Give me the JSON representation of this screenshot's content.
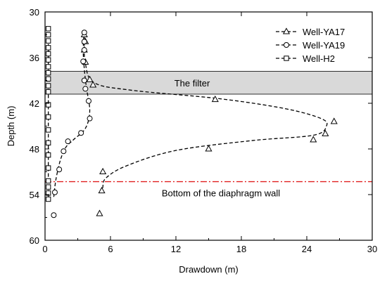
{
  "chart_data": {
    "type": "line",
    "xlabel": "Drawdown (m)",
    "ylabel": "Depth  (m)",
    "xlim": [
      0,
      30
    ],
    "ylim": [
      30,
      60
    ],
    "y_inverted": true,
    "x_ticks": [
      0,
      6,
      12,
      18,
      24,
      30
    ],
    "y_ticks": [
      30,
      36,
      42,
      48,
      54,
      60
    ],
    "grid": false,
    "legend_position": "top-right",
    "series": [
      {
        "name": "Well-YA17",
        "marker": "triangle",
        "color": "#000000",
        "points": [
          {
            "x": 3.6,
            "y": 33.0
          },
          {
            "x": 3.7,
            "y": 33.9
          },
          {
            "x": 3.6,
            "y": 35.0
          },
          {
            "x": 3.7,
            "y": 36.6
          },
          {
            "x": 4.1,
            "y": 38.9
          },
          {
            "x": 4.4,
            "y": 39.6
          },
          {
            "x": 15.6,
            "y": 41.5
          },
          {
            "x": 26.5,
            "y": 44.4
          },
          {
            "x": 25.7,
            "y": 46.0
          },
          {
            "x": 24.6,
            "y": 46.8
          },
          {
            "x": 15.0,
            "y": 48.0
          },
          {
            "x": 5.3,
            "y": 51.0
          },
          {
            "x": 5.2,
            "y": 53.5
          },
          {
            "x": 5.0,
            "y": 56.5
          }
        ]
      },
      {
        "name": "Well-YA19",
        "marker": "circle",
        "color": "#000000",
        "points": [
          {
            "x": 3.6,
            "y": 32.7
          },
          {
            "x": 3.6,
            "y": 33.9
          },
          {
            "x": 3.6,
            "y": 35.0
          },
          {
            "x": 3.5,
            "y": 36.5
          },
          {
            "x": 3.6,
            "y": 39.0
          },
          {
            "x": 3.7,
            "y": 40.1
          },
          {
            "x": 4.0,
            "y": 41.7
          },
          {
            "x": 4.1,
            "y": 44.0
          },
          {
            "x": 3.3,
            "y": 45.9
          },
          {
            "x": 2.1,
            "y": 47.0
          },
          {
            "x": 1.7,
            "y": 48.3
          },
          {
            "x": 1.3,
            "y": 50.7
          },
          {
            "x": 0.9,
            "y": 53.7
          },
          {
            "x": 0.8,
            "y": 56.7
          }
        ]
      },
      {
        "name": "Well-H2",
        "marker": "square",
        "color": "#000000",
        "points": [
          {
            "x": 0.3,
            "y": 32.2
          },
          {
            "x": 0.3,
            "y": 33.0
          },
          {
            "x": 0.3,
            "y": 33.8
          },
          {
            "x": 0.3,
            "y": 34.7
          },
          {
            "x": 0.3,
            "y": 35.5
          },
          {
            "x": 0.3,
            "y": 36.3
          },
          {
            "x": 0.3,
            "y": 37.2
          },
          {
            "x": 0.3,
            "y": 38.0
          },
          {
            "x": 0.3,
            "y": 38.8
          },
          {
            "x": 0.3,
            "y": 39.7
          },
          {
            "x": 0.3,
            "y": 40.5
          },
          {
            "x": 0.3,
            "y": 42.2
          },
          {
            "x": 0.3,
            "y": 43.8
          },
          {
            "x": 0.3,
            "y": 45.5
          },
          {
            "x": 0.3,
            "y": 47.2
          },
          {
            "x": 0.3,
            "y": 48.8
          },
          {
            "x": 0.3,
            "y": 50.5
          },
          {
            "x": 0.3,
            "y": 52.2
          },
          {
            "x": 0.3,
            "y": 53.0
          },
          {
            "x": 0.3,
            "y": 53.8
          },
          {
            "x": 0.3,
            "y": 54.6
          }
        ]
      }
    ],
    "curves": [
      {
        "series": "Well-YA17",
        "points": [
          {
            "x": 3.6,
            "y": 32.5
          },
          {
            "x": 3.6,
            "y": 34.5
          },
          {
            "x": 3.7,
            "y": 36.8
          },
          {
            "x": 4.5,
            "y": 39.3
          },
          {
            "x": 8.0,
            "y": 40.3
          },
          {
            "x": 16.0,
            "y": 41.4
          },
          {
            "x": 22.0,
            "y": 42.7
          },
          {
            "x": 25.3,
            "y": 44.0
          },
          {
            "x": 25.8,
            "y": 45.0
          },
          {
            "x": 24.6,
            "y": 46.2
          },
          {
            "x": 19.0,
            "y": 46.9
          },
          {
            "x": 12.0,
            "y": 48.2
          },
          {
            "x": 7.5,
            "y": 50.2
          },
          {
            "x": 5.6,
            "y": 51.8
          },
          {
            "x": 5.3,
            "y": 53.0
          },
          {
            "x": 5.3,
            "y": 53.7
          }
        ]
      },
      {
        "series": "Well-YA19",
        "points": [
          {
            "x": 3.6,
            "y": 32.5
          },
          {
            "x": 3.5,
            "y": 35.0
          },
          {
            "x": 3.6,
            "y": 37.5
          },
          {
            "x": 3.8,
            "y": 40.0
          },
          {
            "x": 4.1,
            "y": 43.0
          },
          {
            "x": 3.7,
            "y": 45.3
          },
          {
            "x": 2.6,
            "y": 46.8
          },
          {
            "x": 1.9,
            "y": 47.8
          },
          {
            "x": 1.4,
            "y": 49.5
          },
          {
            "x": 1.0,
            "y": 52.0
          },
          {
            "x": 0.8,
            "y": 54.3
          }
        ]
      },
      {
        "series": "Well-H2",
        "points": [
          {
            "x": 0.3,
            "y": 32.0
          },
          {
            "x": 0.3,
            "y": 54.8
          }
        ]
      }
    ],
    "bands": [
      {
        "label": "The filter",
        "y_from": 37.8,
        "y_to": 40.8,
        "color": "#d9d9d9"
      }
    ],
    "reference_lines": [
      {
        "label": "Bottom of the diaphragm wall",
        "y": 52.3,
        "color": "#e02020",
        "style": "dash-dot"
      }
    ]
  }
}
